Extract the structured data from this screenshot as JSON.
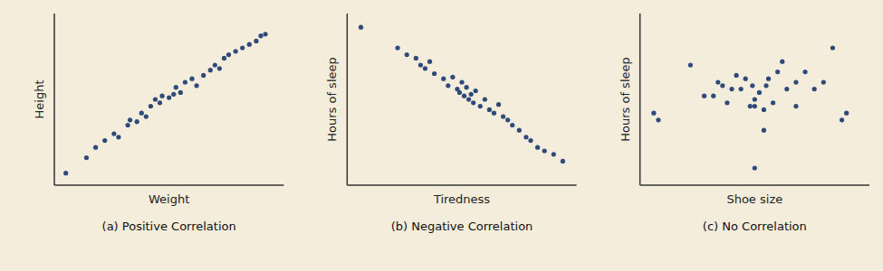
{
  "chart_data": [
    {
      "type": "scatter",
      "title": "(a) Positive Correlation",
      "xlabel": "Weight",
      "ylabel": "Height",
      "x": [
        0.05,
        0.14,
        0.18,
        0.22,
        0.26,
        0.28,
        0.32,
        0.33,
        0.36,
        0.38,
        0.4,
        0.42,
        0.44,
        0.46,
        0.47,
        0.5,
        0.52,
        0.53,
        0.55,
        0.57,
        0.6,
        0.62,
        0.65,
        0.68,
        0.7,
        0.72,
        0.74,
        0.76,
        0.79,
        0.82,
        0.85,
        0.88,
        0.9,
        0.92
      ],
      "values": [
        0.07,
        0.16,
        0.22,
        0.26,
        0.3,
        0.28,
        0.35,
        0.38,
        0.37,
        0.42,
        0.4,
        0.46,
        0.5,
        0.48,
        0.52,
        0.51,
        0.53,
        0.57,
        0.54,
        0.6,
        0.62,
        0.58,
        0.64,
        0.67,
        0.7,
        0.68,
        0.74,
        0.76,
        0.78,
        0.8,
        0.82,
        0.84,
        0.87,
        0.88
      ],
      "color": "#2e4a7a",
      "xlim": [
        0,
        1
      ],
      "ylim": [
        0,
        1
      ],
      "tick_labels": false
    },
    {
      "type": "scatter",
      "title": "(b) Negative Correlation",
      "xlabel": "Tiredness",
      "ylabel": "Hours of sleep",
      "x": [
        0.06,
        0.22,
        0.26,
        0.3,
        0.32,
        0.34,
        0.36,
        0.38,
        0.42,
        0.44,
        0.46,
        0.48,
        0.49,
        0.5,
        0.51,
        0.52,
        0.53,
        0.54,
        0.55,
        0.56,
        0.58,
        0.6,
        0.62,
        0.64,
        0.66,
        0.68,
        0.7,
        0.72,
        0.75,
        0.78,
        0.8,
        0.83,
        0.86,
        0.9,
        0.94
      ],
      "values": [
        0.92,
        0.8,
        0.76,
        0.74,
        0.7,
        0.68,
        0.72,
        0.65,
        0.62,
        0.58,
        0.63,
        0.56,
        0.54,
        0.6,
        0.52,
        0.57,
        0.5,
        0.53,
        0.48,
        0.55,
        0.46,
        0.5,
        0.44,
        0.42,
        0.47,
        0.4,
        0.38,
        0.35,
        0.32,
        0.28,
        0.26,
        0.22,
        0.2,
        0.18,
        0.14
      ],
      "color": "#2e4a7a",
      "xlim": [
        0,
        1
      ],
      "ylim": [
        0,
        1
      ],
      "tick_labels": false
    },
    {
      "type": "scatter",
      "title": "(c) No Correlation",
      "xlabel": "Shoe size",
      "ylabel": "Hours of sleep",
      "x": [
        0.06,
        0.08,
        0.22,
        0.28,
        0.32,
        0.34,
        0.36,
        0.38,
        0.4,
        0.42,
        0.44,
        0.46,
        0.48,
        0.49,
        0.5,
        0.5,
        0.52,
        0.54,
        0.55,
        0.56,
        0.58,
        0.6,
        0.62,
        0.64,
        0.68,
        0.72,
        0.76,
        0.8,
        0.84,
        0.88,
        0.9,
        0.5,
        0.54,
        0.68
      ],
      "values": [
        0.42,
        0.38,
        0.7,
        0.52,
        0.52,
        0.6,
        0.58,
        0.48,
        0.56,
        0.64,
        0.56,
        0.62,
        0.46,
        0.58,
        0.46,
        0.5,
        0.54,
        0.44,
        0.58,
        0.62,
        0.48,
        0.66,
        0.72,
        0.56,
        0.6,
        0.66,
        0.56,
        0.6,
        0.8,
        0.38,
        0.42,
        0.1,
        0.32,
        0.46
      ],
      "color": "#2e4a7a",
      "xlim": [
        0,
        1
      ],
      "ylim": [
        0,
        1
      ],
      "tick_labels": false
    }
  ]
}
